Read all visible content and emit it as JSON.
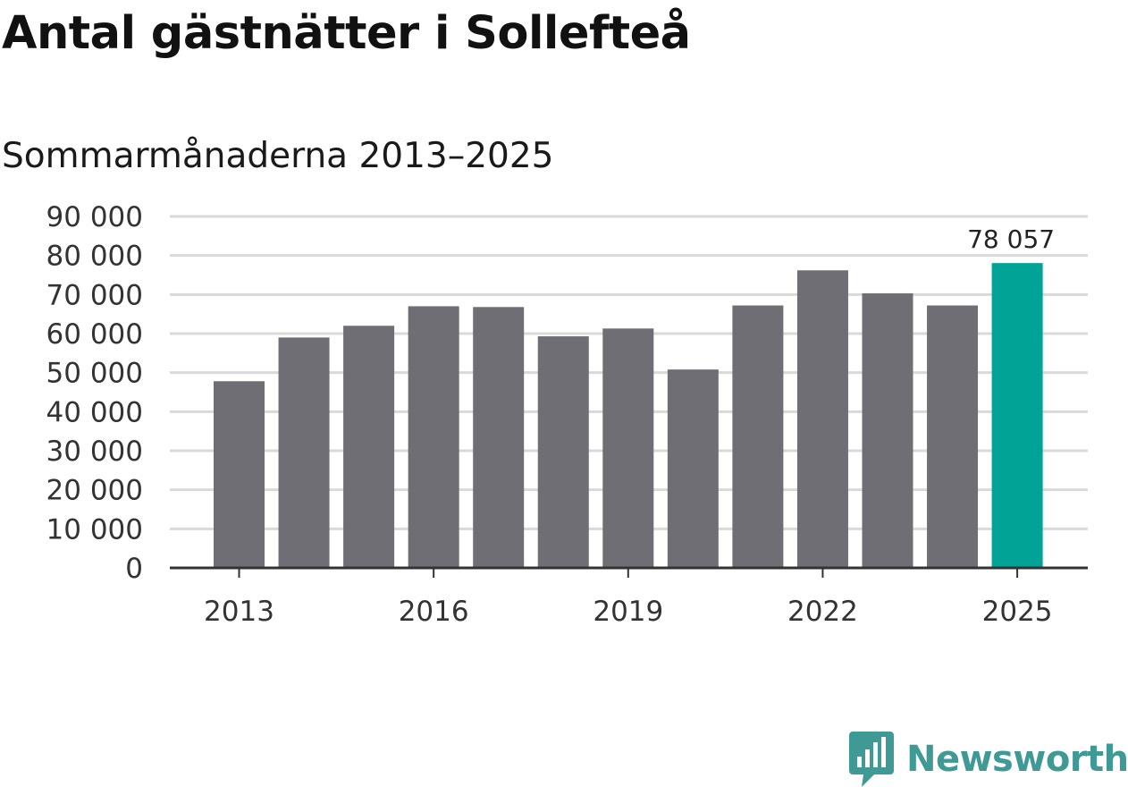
{
  "title": "Antal gästnätter i Sollefteå",
  "subtitle": "Sommarmånaderna 2013–2025",
  "brand": {
    "name": "Newsworthy",
    "icon": "bar-chart-badge-icon",
    "color": "#3f9a96"
  },
  "colors": {
    "bar": "#6f6e74",
    "highlight": "#00a396",
    "grid": "#d9d9d9",
    "axis": "#333333"
  },
  "chart_data": {
    "type": "bar",
    "categories": [
      "2013",
      "2014",
      "2015",
      "2016",
      "2017",
      "2018",
      "2019",
      "2020",
      "2021",
      "2022",
      "2023",
      "2024",
      "2025"
    ],
    "values": [
      47800,
      59000,
      62000,
      67000,
      66800,
      59300,
      61300,
      50800,
      67200,
      76200,
      70300,
      67200,
      78057
    ],
    "highlight_index": 12,
    "highlight_label": "78 057",
    "ylim": [
      0,
      90000
    ],
    "yticks": [
      0,
      10000,
      20000,
      30000,
      40000,
      50000,
      60000,
      70000,
      80000,
      90000
    ],
    "ytick_labels": [
      "0",
      "10 000",
      "20 000",
      "30 000",
      "40 000",
      "50 000",
      "60 000",
      "70 000",
      "80 000",
      "90 000"
    ],
    "xtick_labels": [
      "2013",
      "2016",
      "2019",
      "2022",
      "2025"
    ],
    "grid": true,
    "legend": "none"
  }
}
